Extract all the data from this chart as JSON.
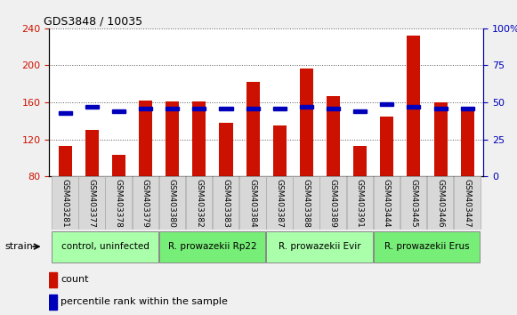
{
  "title": "GDS3848 / 10035",
  "samples": [
    "GSM403281",
    "GSM403377",
    "GSM403378",
    "GSM403379",
    "GSM403380",
    "GSM403382",
    "GSM403383",
    "GSM403384",
    "GSM403387",
    "GSM403388",
    "GSM403389",
    "GSM403391",
    "GSM403444",
    "GSM403445",
    "GSM403446",
    "GSM403447"
  ],
  "counts": [
    113,
    130,
    103,
    162,
    161,
    161,
    138,
    182,
    135,
    197,
    167,
    113,
    145,
    232,
    160,
    155
  ],
  "percentiles": [
    43,
    47,
    44,
    46,
    46,
    46,
    46,
    46,
    46,
    47,
    46,
    44,
    49,
    47,
    46,
    46
  ],
  "ymin": 80,
  "ymax": 240,
  "yticks_left": [
    80,
    120,
    160,
    200,
    240
  ],
  "yticks_right": [
    0,
    25,
    50,
    75,
    100
  ],
  "bar_color": "#cc1100",
  "percentile_color": "#0000bb",
  "plot_bg": "#ffffff",
  "fig_bg": "#f0f0f0",
  "groups": [
    {
      "label": "control, uninfected",
      "start": 0,
      "end": 4,
      "color": "#aaffaa"
    },
    {
      "label": "R. prowazekii Rp22",
      "start": 4,
      "end": 8,
      "color": "#77ee77"
    },
    {
      "label": "R. prowazekii Evir",
      "start": 8,
      "end": 12,
      "color": "#aaffaa"
    },
    {
      "label": "R. prowazekii Erus",
      "start": 12,
      "end": 16,
      "color": "#77ee77"
    }
  ],
  "strain_label": "strain",
  "legend_count": "count",
  "legend_percentile": "percentile rank within the sample",
  "bar_width": 0.5
}
